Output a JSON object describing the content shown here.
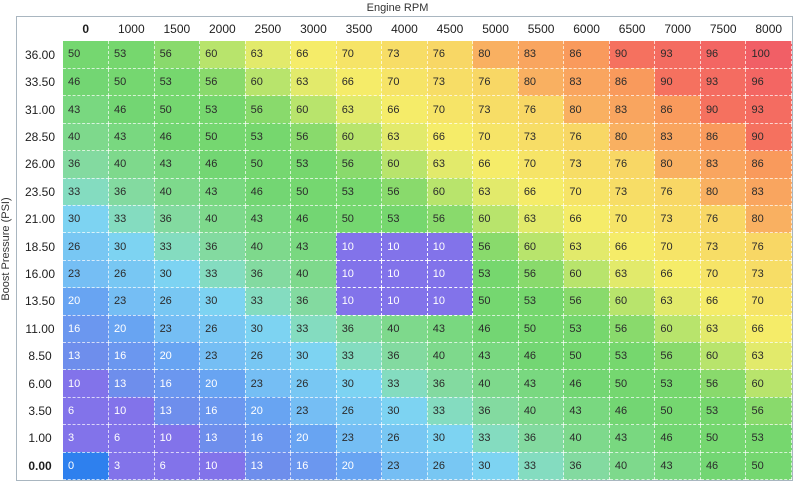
{
  "chart_data": {
    "type": "heatmap",
    "title": "Engine RPM",
    "xlabel": "Engine RPM",
    "ylabel": "Boost Pressure (PSI)",
    "x_ticks": [
      "0",
      "1000",
      "1500",
      "2000",
      "2500",
      "3000",
      "3500",
      "4000",
      "4500",
      "5000",
      "5500",
      "6000",
      "6500",
      "7000",
      "7500",
      "8000"
    ],
    "y_ticks": [
      "36.00",
      "33.50",
      "31.00",
      "28.50",
      "26.00",
      "23.50",
      "21.00",
      "18.50",
      "16.00",
      "13.50",
      "11.00",
      "8.50",
      "6.00",
      "3.50",
      "1.00",
      "0.00"
    ],
    "values": [
      [
        50,
        53,
        56,
        60,
        63,
        66,
        70,
        73,
        76,
        80,
        83,
        86,
        90,
        93,
        96,
        100
      ],
      [
        46,
        50,
        53,
        56,
        60,
        63,
        66,
        70,
        73,
        76,
        80,
        83,
        86,
        90,
        93,
        96
      ],
      [
        43,
        46,
        50,
        53,
        56,
        60,
        63,
        66,
        70,
        73,
        76,
        80,
        83,
        86,
        90,
        93
      ],
      [
        40,
        43,
        46,
        50,
        53,
        56,
        60,
        63,
        66,
        70,
        73,
        76,
        80,
        83,
        86,
        90
      ],
      [
        36,
        40,
        43,
        46,
        50,
        53,
        56,
        60,
        63,
        66,
        70,
        73,
        76,
        80,
        83,
        86
      ],
      [
        33,
        36,
        40,
        43,
        46,
        50,
        53,
        56,
        60,
        63,
        66,
        70,
        73,
        76,
        80,
        83
      ],
      [
        30,
        33,
        36,
        40,
        43,
        46,
        50,
        53,
        56,
        60,
        63,
        66,
        70,
        73,
        76,
        80
      ],
      [
        26,
        30,
        33,
        36,
        40,
        43,
        10,
        10,
        10,
        56,
        60,
        63,
        66,
        70,
        73,
        76
      ],
      [
        23,
        26,
        30,
        33,
        36,
        40,
        10,
        10,
        10,
        53,
        56,
        60,
        63,
        66,
        70,
        73
      ],
      [
        20,
        23,
        26,
        30,
        33,
        36,
        10,
        10,
        10,
        50,
        53,
        56,
        60,
        63,
        66,
        70
      ],
      [
        16,
        20,
        23,
        26,
        30,
        33,
        36,
        40,
        43,
        46,
        50,
        53,
        56,
        60,
        63,
        66
      ],
      [
        13,
        16,
        20,
        23,
        26,
        30,
        33,
        36,
        40,
        43,
        46,
        50,
        53,
        56,
        60,
        63
      ],
      [
        10,
        13,
        16,
        20,
        23,
        26,
        30,
        33,
        36,
        40,
        43,
        46,
        50,
        53,
        56,
        60
      ],
      [
        6,
        10,
        13,
        16,
        20,
        23,
        26,
        30,
        33,
        36,
        40,
        43,
        46,
        50,
        53,
        56
      ],
      [
        3,
        6,
        10,
        13,
        16,
        20,
        23,
        26,
        30,
        33,
        36,
        40,
        43,
        46,
        50,
        53
      ],
      [
        0,
        3,
        6,
        10,
        13,
        16,
        20,
        23,
        26,
        30,
        33,
        36,
        40,
        43,
        46,
        50
      ]
    ],
    "selected_cell": {
      "row_index": 15,
      "col_index": 0,
      "value": 0
    },
    "highlight_block": {
      "row_start": 7,
      "row_end": 9,
      "col_start": 6,
      "col_end": 8,
      "value": 10
    },
    "colors": {
      "selected_cell_bg": "#2e80ee",
      "outer_border": "#a9b6c0",
      "grid_line": "rgba(255,255,255,0.7)",
      "header_text": "#1e1e1e",
      "cell_text_dark": "#2b2b2b",
      "cell_text_light": "#ffffff",
      "light_text_max_value": 20,
      "stops": [
        [
          0,
          "#8273ea"
        ],
        [
          10,
          "#8273ea"
        ],
        [
          13,
          "#6e8eec"
        ],
        [
          20,
          "#68a4f2"
        ],
        [
          23,
          "#75bef4"
        ],
        [
          30,
          "#7dd3f2"
        ],
        [
          33,
          "#84dcc0"
        ],
        [
          36,
          "#83daa0"
        ],
        [
          40,
          "#7ed98c"
        ],
        [
          46,
          "#73d673"
        ],
        [
          53,
          "#76d76e"
        ],
        [
          56,
          "#89da6c"
        ],
        [
          60,
          "#b8e46c"
        ],
        [
          63,
          "#e2ea6b"
        ],
        [
          66,
          "#f5ec69"
        ],
        [
          76,
          "#f8d765"
        ],
        [
          80,
          "#f9b061"
        ],
        [
          86,
          "#f99a5c"
        ],
        [
          90,
          "#f5715f"
        ],
        [
          100,
          "#f15f66"
        ]
      ]
    }
  }
}
